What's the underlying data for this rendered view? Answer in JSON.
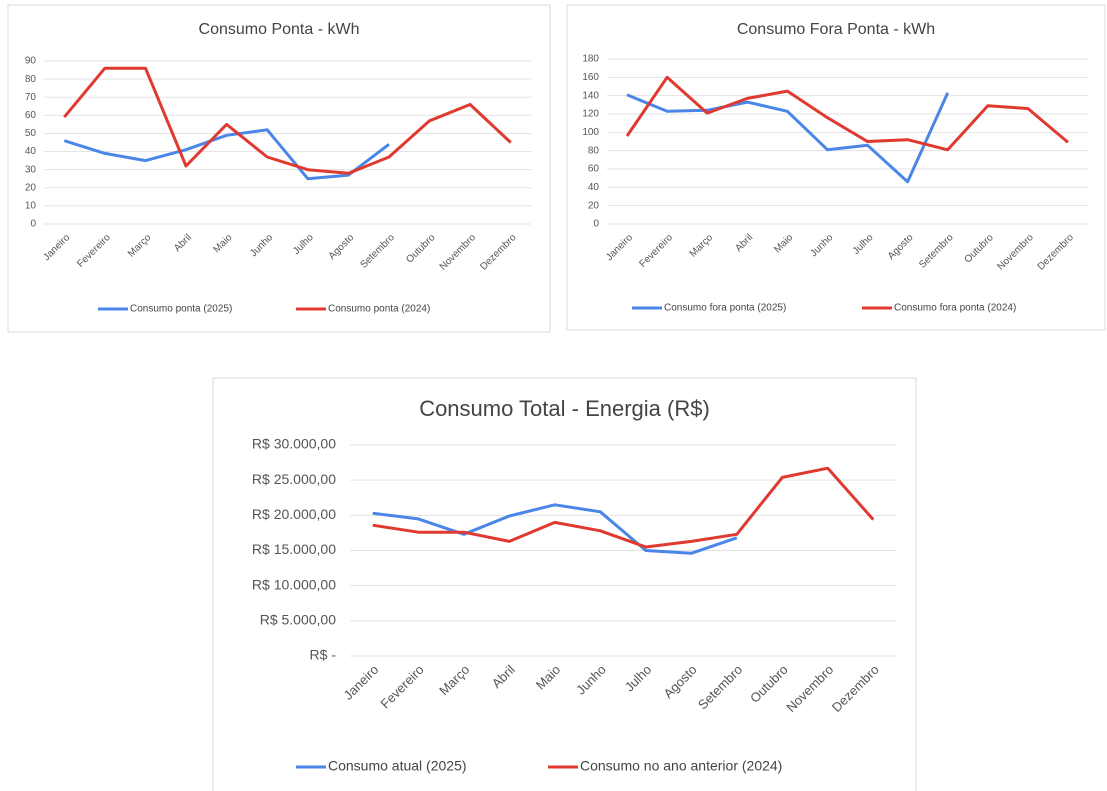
{
  "chart_data": [
    {
      "type": "line",
      "title": "Consumo Ponta - kWh",
      "categories": [
        "Janeiro",
        "Fevereiro",
        "Março",
        "Abril",
        "Maio",
        "Junho",
        "Julho",
        "Agosto",
        "Setembro",
        "Outubro",
        "Novembro",
        "Dezembro"
      ],
      "series": [
        {
          "name": "Consumo ponta (2025)",
          "color": "#4a86e8",
          "values": [
            46,
            39,
            35,
            41,
            49,
            52,
            25,
            27,
            44,
            null,
            null,
            null
          ]
        },
        {
          "name": "Consumo ponta (2024)",
          "color": "#e0392f",
          "values": [
            59,
            86,
            86,
            32,
            55,
            37,
            30,
            28,
            37,
            57,
            66,
            45
          ]
        }
      ],
      "ylim": [
        0,
        90
      ],
      "yticks": [
        0,
        10,
        20,
        30,
        40,
        50,
        60,
        70,
        80,
        90
      ],
      "grid": true,
      "legend": "bottom"
    },
    {
      "type": "line",
      "title": "Consumo Fora Ponta - kWh",
      "categories": [
        "Janeiro",
        "Fevereiro",
        "Março",
        "Abril",
        "Maio",
        "Junho",
        "Julho",
        "Agosto",
        "Setembro",
        "Outubro",
        "Novembro",
        "Dezembro"
      ],
      "series": [
        {
          "name": "Consumo fora ponta (2025)",
          "color": "#4a86e8",
          "values": [
            141,
            123,
            124,
            133,
            123,
            81,
            86,
            46,
            143,
            null,
            null,
            null
          ]
        },
        {
          "name": "Consumo fora ponta (2024)",
          "color": "#e0392f",
          "values": [
            96,
            160,
            121,
            137,
            145,
            116,
            90,
            92,
            81,
            129,
            126,
            89
          ]
        }
      ],
      "ylim": [
        0,
        180
      ],
      "yticks": [
        0,
        20,
        40,
        60,
        80,
        100,
        120,
        140,
        160,
        180
      ],
      "grid": true,
      "legend": "bottom"
    },
    {
      "type": "line",
      "title": "Consumo Total - Energia (R$)",
      "categories": [
        "Janeiro",
        "Fevereiro",
        "Março",
        "Abril",
        "Maio",
        "Junho",
        "Julho",
        "Agosto",
        "Setembro",
        "Outubro",
        "Novembro",
        "Dezembro"
      ],
      "series": [
        {
          "name": "Consumo atual (2025)",
          "color": "#4a86e8",
          "values": [
            20300,
            19500,
            17300,
            19900,
            21500,
            20500,
            15000,
            14600,
            16800,
            null,
            null,
            null
          ]
        },
        {
          "name": "Consumo no ano anterior (2024)",
          "color": "#e0392f",
          "values": [
            18600,
            17600,
            17600,
            16300,
            19000,
            17800,
            15500,
            16300,
            17300,
            25400,
            26700,
            19400
          ]
        }
      ],
      "ylim": [
        0,
        30000
      ],
      "yticks": [
        {
          "value": 0,
          "label": "R$ -"
        },
        {
          "value": 5000,
          "label": "R$ 5.000,00"
        },
        {
          "value": 10000,
          "label": "R$ 10.000,00"
        },
        {
          "value": 15000,
          "label": "R$ 15.000,00"
        },
        {
          "value": 20000,
          "label": "R$ 20.000,00"
        },
        {
          "value": 25000,
          "label": "R$ 25.000,00"
        },
        {
          "value": 30000,
          "label": "R$ 30.000,00"
        }
      ],
      "grid": true,
      "legend": "bottom"
    }
  ]
}
